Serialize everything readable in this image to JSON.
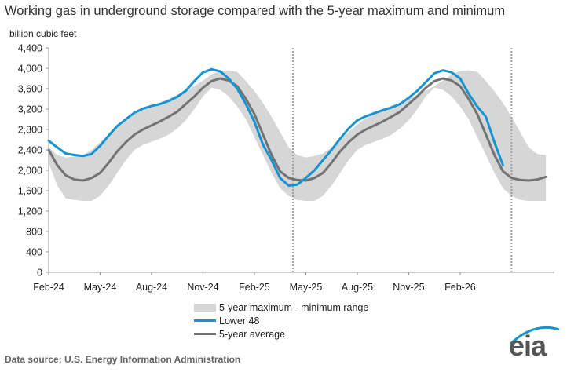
{
  "chart_data": {
    "type": "line",
    "title": "Working gas in underground storage compared with the 5-year maximum and minimum",
    "ylabel": "billion cubic feet",
    "xlabel": "",
    "ylim": [
      0,
      4400
    ],
    "yticks": [
      0,
      400,
      800,
      1200,
      1600,
      2000,
      2400,
      2800,
      3200,
      3600,
      4000,
      4400
    ],
    "ytick_labels": [
      "0",
      "400",
      "800",
      "1,200",
      "1,600",
      "2,000",
      "2,400",
      "2,800",
      "3,200",
      "3,600",
      "4,000",
      "4,400"
    ],
    "xlim_months": [
      0,
      29.5
    ],
    "x_unit": "months since Feb-24",
    "xticks": [
      0,
      3,
      6,
      9,
      12,
      15,
      18,
      21,
      24
    ],
    "xtick_labels": [
      "Feb-24",
      "May-24",
      "Aug-24",
      "Nov-24",
      "Feb-25",
      "May-25",
      "Aug-25",
      "Nov-25",
      "Feb-26"
    ],
    "vertical_markers": [
      14.25,
      27.0
    ],
    "band": {
      "name": "5-year maximum - minimum range",
      "x": [
        0,
        0.5,
        1,
        1.5,
        2,
        2.5,
        3,
        3.5,
        4,
        4.5,
        5,
        5.5,
        6,
        6.5,
        7,
        7.5,
        8,
        8.5,
        9,
        9.5,
        10,
        10.5,
        11,
        11.5,
        12,
        12.5,
        13,
        13.5,
        14,
        14.5,
        15,
        15.5,
        16,
        16.5,
        17,
        17.5,
        18,
        18.5,
        19,
        19.5,
        20,
        20.5,
        21,
        21.5,
        22,
        22.5,
        23,
        23.5,
        24,
        24.5,
        25,
        25.5,
        26,
        26.5,
        27,
        27.5,
        28,
        28.5,
        29
      ],
      "upper": [
        2450,
        2300,
        2250,
        2270,
        2300,
        2400,
        2550,
        2700,
        2850,
        2980,
        3100,
        3200,
        3270,
        3330,
        3400,
        3480,
        3560,
        3650,
        3760,
        3880,
        3950,
        3960,
        3930,
        3750,
        3550,
        3320,
        3050,
        2750,
        2450,
        2300,
        2250,
        2280,
        2330,
        2450,
        2600,
        2750,
        2900,
        3020,
        3120,
        3200,
        3270,
        3330,
        3400,
        3480,
        3560,
        3650,
        3760,
        3880,
        3950,
        3960,
        3930,
        3750,
        3550,
        3320,
        3050,
        2750,
        2450,
        2320,
        2300
      ],
      "lower": [
        2150,
        1700,
        1450,
        1420,
        1400,
        1400,
        1500,
        1700,
        1950,
        2200,
        2400,
        2500,
        2560,
        2620,
        2700,
        2820,
        2980,
        3200,
        3450,
        3620,
        3580,
        3450,
        3250,
        3000,
        2650,
        2300,
        1950,
        1650,
        1500,
        1420,
        1400,
        1400,
        1500,
        1700,
        1950,
        2200,
        2400,
        2500,
        2560,
        2620,
        2700,
        2820,
        2980,
        3200,
        3450,
        3620,
        3580,
        3450,
        3250,
        3000,
        2650,
        2300,
        1950,
        1650,
        1500,
        1420,
        1400,
        1400,
        1400
      ]
    },
    "series": [
      {
        "name": "5-year average",
        "color": "#737373",
        "x": [
          0,
          0.5,
          1,
          1.5,
          2,
          2.5,
          3,
          3.5,
          4,
          4.5,
          5,
          5.5,
          6,
          6.5,
          7,
          7.5,
          8,
          8.5,
          9,
          9.5,
          10,
          10.5,
          11,
          11.5,
          12,
          12.5,
          13,
          13.5,
          14,
          14.5,
          15,
          15.5,
          16,
          16.5,
          17,
          17.5,
          18,
          18.5,
          19,
          19.5,
          20,
          20.5,
          21,
          21.5,
          22,
          22.5,
          23,
          23.5,
          24,
          24.5,
          25,
          25.5,
          26,
          26.5,
          27,
          27.5,
          28,
          28.5,
          29
        ],
        "values": [
          2400,
          2100,
          1900,
          1820,
          1800,
          1850,
          1950,
          2150,
          2370,
          2550,
          2700,
          2800,
          2880,
          2960,
          3050,
          3150,
          3300,
          3450,
          3620,
          3750,
          3800,
          3760,
          3650,
          3400,
          3100,
          2700,
          2300,
          1980,
          1850,
          1810,
          1800,
          1850,
          1950,
          2150,
          2370,
          2550,
          2700,
          2800,
          2880,
          2960,
          3050,
          3150,
          3300,
          3450,
          3620,
          3750,
          3800,
          3760,
          3650,
          3400,
          3100,
          2700,
          2300,
          1980,
          1850,
          1810,
          1800,
          1820,
          1870
        ]
      },
      {
        "name": "Lower 48",
        "color": "#1693d0",
        "x": [
          0,
          0.5,
          1,
          1.5,
          2,
          2.5,
          3,
          3.5,
          4,
          4.5,
          5,
          5.5,
          6,
          6.5,
          7,
          7.5,
          8,
          8.5,
          9,
          9.5,
          10,
          10.5,
          11,
          11.5,
          12,
          12.5,
          13,
          13.5,
          14,
          14.5,
          15,
          15.5,
          16,
          16.5,
          17,
          17.5,
          18,
          18.5,
          19,
          19.5,
          20,
          20.5,
          21,
          21.5,
          22,
          22.5,
          23,
          23.5,
          24,
          24.5,
          25,
          25.5,
          26,
          26.5
        ],
        "values": [
          2580,
          2450,
          2330,
          2300,
          2280,
          2320,
          2480,
          2680,
          2870,
          3000,
          3130,
          3210,
          3260,
          3300,
          3360,
          3440,
          3560,
          3750,
          3920,
          3980,
          3940,
          3800,
          3600,
          3300,
          2950,
          2500,
          2200,
          1850,
          1700,
          1720,
          1850,
          2000,
          2200,
          2400,
          2620,
          2820,
          2980,
          3060,
          3120,
          3180,
          3230,
          3300,
          3420,
          3560,
          3730,
          3900,
          3960,
          3920,
          3800,
          3500,
          3250,
          3050,
          2550,
          2100
        ]
      }
    ],
    "legend": {
      "position": "bottom-center",
      "items": [
        "5-year maximum - minimum range",
        "Lower 48",
        "5-year average"
      ]
    },
    "source": "Data source:  U.S. Energy Information Administration",
    "logo_text": "eia"
  }
}
